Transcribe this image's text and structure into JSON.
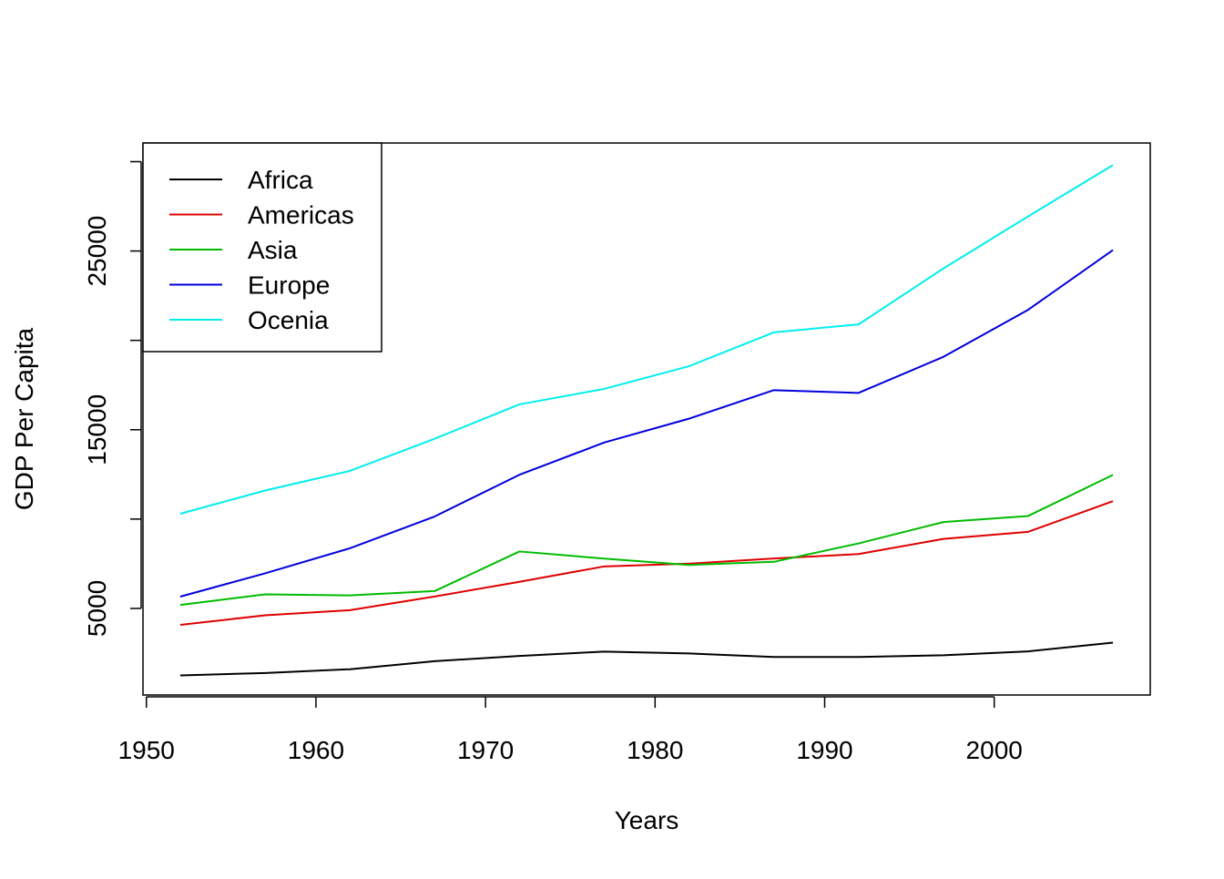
{
  "chart_data": {
    "type": "line",
    "title": "",
    "xlabel": "Years",
    "ylabel": "GDP Per Capita",
    "x": [
      1952,
      1957,
      1962,
      1967,
      1972,
      1977,
      1982,
      1987,
      1992,
      1997,
      2002,
      2007
    ],
    "xlim": [
      1952,
      2007
    ],
    "ylim": [
      1300,
      29900
    ],
    "x_ticks": [
      1950,
      1960,
      1970,
      1980,
      1990,
      2000
    ],
    "y_ticks": [
      0,
      5000,
      10000,
      15000,
      20000,
      25000,
      30000
    ],
    "y_tick_labels": [
      "5000",
      "15000",
      "25000"
    ],
    "grid": false,
    "legend_position": "top-left",
    "series": [
      {
        "name": "Africa",
        "color": "#000000",
        "values": [
          1253,
          1385,
          1598,
          2050,
          2340,
          2586,
          2482,
          2283,
          2282,
          2379,
          2599,
          3089
        ]
      },
      {
        "name": "Americas",
        "color": "#DF0000",
        "values": [
          4079,
          4616,
          4902,
          5668,
          6491,
          7352,
          7507,
          7793,
          8045,
          8889,
          9288,
          11003
        ]
      },
      {
        "name": "Asia",
        "color": "#00BB00",
        "values": [
          5195,
          5788,
          5729,
          5971,
          8187,
          7791,
          7434,
          7608,
          8640,
          9834,
          10174,
          12473
        ]
      },
      {
        "name": "Europe",
        "color": "#0000DD",
        "values": [
          5661,
          6963,
          8366,
          10144,
          12480,
          14284,
          15618,
          17214,
          17062,
          19077,
          21712,
          25054
        ]
      },
      {
        "name": "Ocenia",
        "color": "#00EEEE",
        "values": [
          10298,
          11599,
          12696,
          14495,
          16418,
          17284,
          18555,
          20448,
          20895,
          24024,
          26938,
          29810
        ]
      }
    ]
  }
}
